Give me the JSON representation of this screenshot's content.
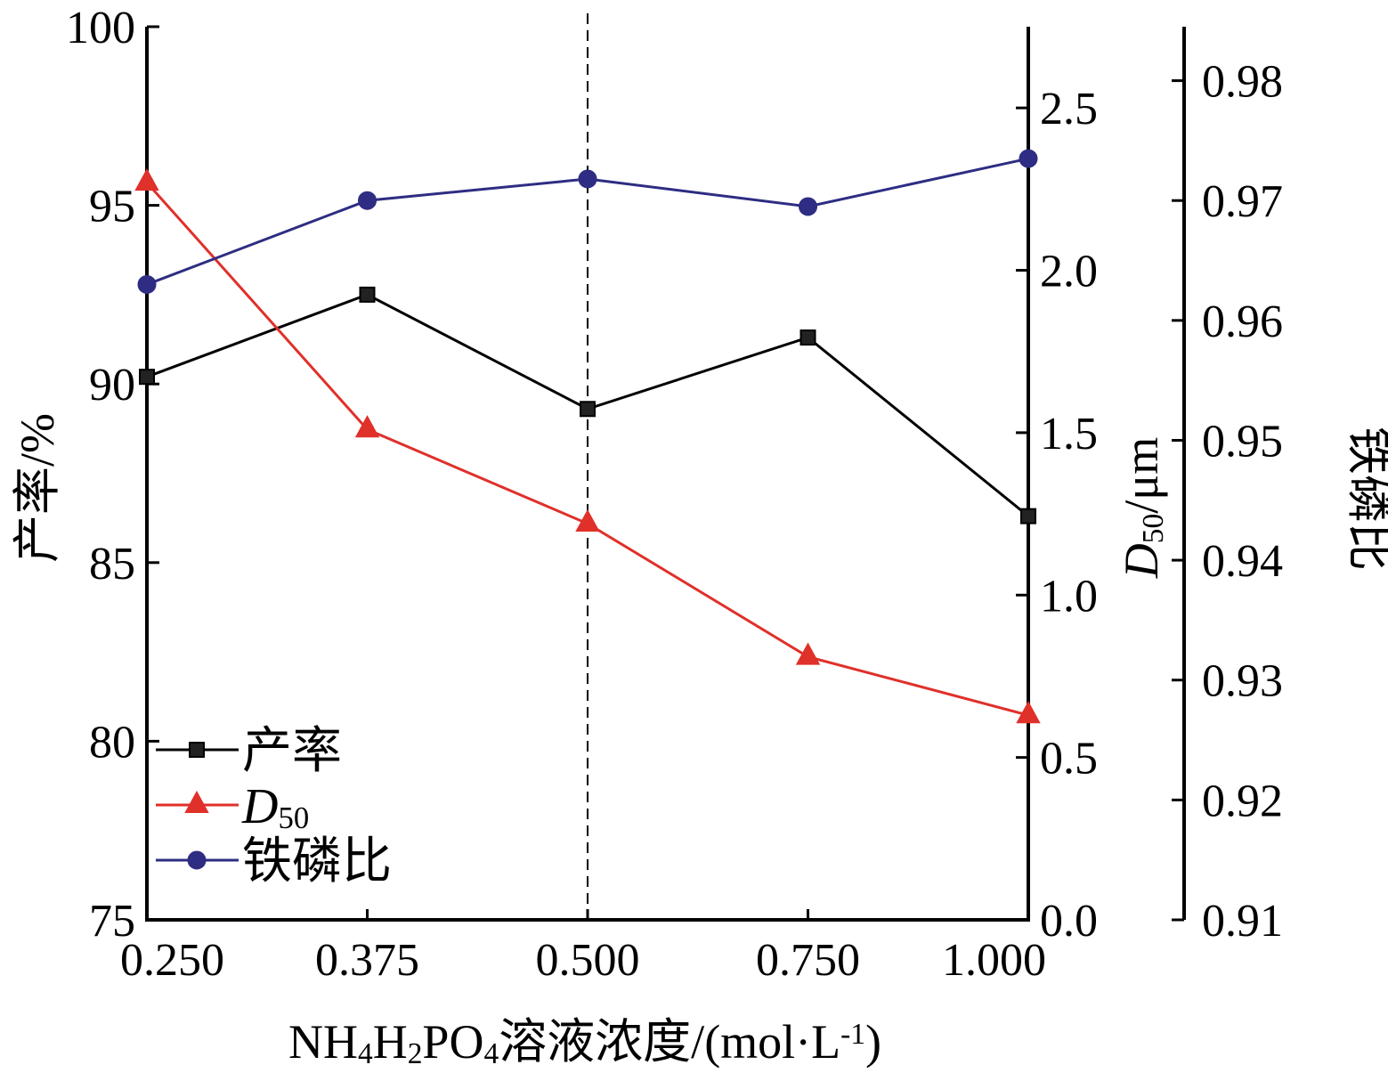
{
  "chart_data": {
    "type": "line",
    "categories": [
      "0.250",
      "0.375",
      "0.500",
      "0.750",
      "1.000"
    ],
    "x_label_segments": [
      {
        "text": "NH",
        "style": "normal"
      },
      {
        "text": "4",
        "style": "sub"
      },
      {
        "text": "H",
        "style": "normal"
      },
      {
        "text": "2",
        "style": "sub"
      },
      {
        "text": "PO",
        "style": "normal"
      },
      {
        "text": "4",
        "style": "sub"
      },
      {
        "text": "溶液浓度/(mol·L",
        "style": "normal"
      },
      {
        "text": "-1",
        "style": "sup"
      },
      {
        "text": ")",
        "style": "normal"
      }
    ],
    "vertical_reference_category": "0.500",
    "axes": {
      "left": {
        "label": "产率/%",
        "ylim": [
          75,
          100
        ],
        "ticks": [
          75,
          80,
          85,
          90,
          95,
          100
        ],
        "tick_labels": [
          "75",
          "80",
          "85",
          "90",
          "95",
          "100"
        ]
      },
      "right1": {
        "label_segments": [
          {
            "text": "D",
            "style": "italic"
          },
          {
            "text": "50",
            "style": "sub"
          },
          {
            "text": "/μm",
            "style": "normal"
          }
        ],
        "ylim": [
          0,
          2.75
        ],
        "ticks": [
          0,
          0.5,
          1.0,
          1.5,
          2.0,
          2.5
        ],
        "tick_labels": [
          "0.0",
          "0.5",
          "1.0",
          "1.5",
          "2.0",
          "2.5"
        ]
      },
      "right2": {
        "label": "铁磷比",
        "ylim": [
          0.91,
          0.9845
        ],
        "ticks": [
          0.91,
          0.92,
          0.93,
          0.94,
          0.95,
          0.96,
          0.97,
          0.98
        ],
        "tick_labels": [
          "0.91",
          "0.92",
          "0.93",
          "0.94",
          "0.95",
          "0.96",
          "0.97",
          "0.98"
        ]
      }
    },
    "series": [
      {
        "name": "产率",
        "axis": "left",
        "color": "#000000",
        "marker": "square",
        "values": [
          90.2,
          92.5,
          89.3,
          91.3,
          86.3
        ]
      },
      {
        "name": "D50",
        "name_segments": [
          {
            "text": "D",
            "style": "italic"
          },
          {
            "text": "50",
            "style": "sub"
          }
        ],
        "axis": "right1",
        "color": "#e0302a",
        "marker": "triangle",
        "values": [
          2.27,
          1.51,
          1.22,
          0.81,
          0.63
        ]
      },
      {
        "name": "铁磷比",
        "axis": "right2",
        "color": "#2e2d83",
        "marker": "circle",
        "values": [
          0.963,
          0.97,
          0.9718,
          0.9695,
          0.9735
        ]
      }
    ],
    "legend": {
      "placement": "bottom-left"
    }
  }
}
